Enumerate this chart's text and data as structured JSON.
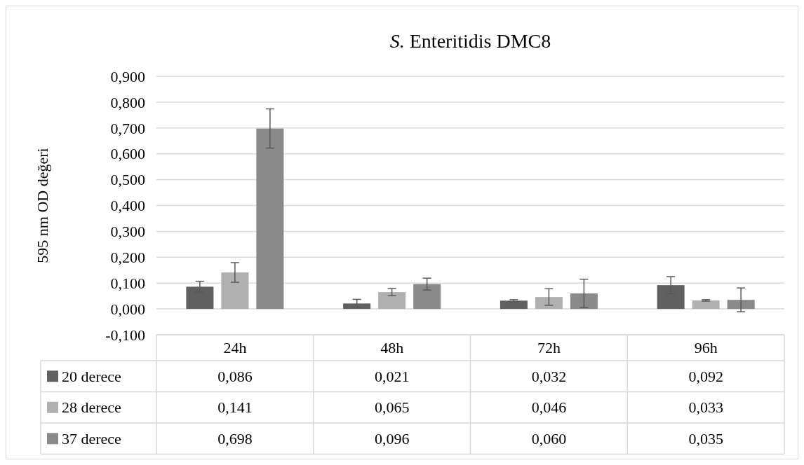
{
  "chart_data": {
    "type": "bar",
    "title": "S. Enteritidis DMC8",
    "ylabel": "595 nm OD değeri",
    "categories": [
      "24h",
      "48h",
      "72h",
      "96h"
    ],
    "series": [
      {
        "name": "20 derece",
        "color": "#606060",
        "values": [
          0.086,
          0.021,
          0.032,
          0.092
        ],
        "errors": [
          0.021,
          0.016,
          0.004,
          0.033
        ],
        "value_labels": [
          "0,086",
          "0,021",
          "0,032",
          "0,092"
        ]
      },
      {
        "name": "28 derece",
        "color": "#b0b0b0",
        "values": [
          0.141,
          0.065,
          0.046,
          0.033
        ],
        "errors": [
          0.038,
          0.014,
          0.032,
          0.003
        ],
        "value_labels": [
          "0,141",
          "0,065",
          "0,046",
          "0,033"
        ]
      },
      {
        "name": "37 derece",
        "color": "#8a8a8a",
        "values": [
          0.698,
          0.096,
          0.06,
          0.035
        ],
        "errors": [
          0.076,
          0.023,
          0.055,
          0.046
        ],
        "value_labels": [
          "0,698",
          "0,096",
          "0,060",
          "0,035"
        ]
      }
    ],
    "ylim": [
      -0.1,
      0.9
    ],
    "yticks": [
      {
        "value": -0.1,
        "label": "-0,100"
      },
      {
        "value": 0,
        "label": "0,000"
      },
      {
        "value": 0.1,
        "label": "0,100"
      },
      {
        "value": 0.2,
        "label": "0,200"
      },
      {
        "value": 0.3,
        "label": "0,300"
      },
      {
        "value": 0.4,
        "label": "0,400"
      },
      {
        "value": 0.5,
        "label": "0,500"
      },
      {
        "value": 0.6,
        "label": "0,600"
      },
      {
        "value": 0.7,
        "label": "0,700"
      },
      {
        "value": 0.8,
        "label": "0,800"
      },
      {
        "value": 0.9,
        "label": "0,900"
      }
    ],
    "grid": "y",
    "legend": "bottom"
  }
}
